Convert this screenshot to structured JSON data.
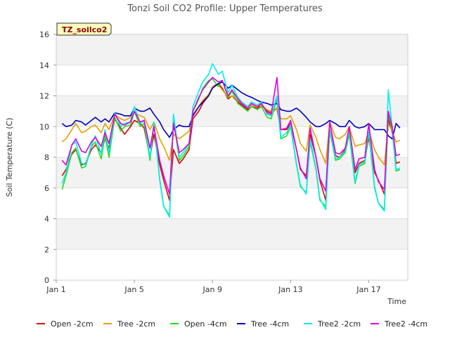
{
  "chart_data": {
    "type": "line",
    "title": "Tonzi Soil CO2 Profile: Upper Temperatures",
    "xlabel": "Time",
    "ylabel": "Soil Temperature (C)",
    "tag": "TZ_soilco2",
    "xlim": [
      1,
      19
    ],
    "ylim": [
      0,
      16
    ],
    "x_ticks": [
      {
        "value": 1,
        "label": "Jan 1"
      },
      {
        "value": 5,
        "label": "Jan 5"
      },
      {
        "value": 9,
        "label": "Jan 9"
      },
      {
        "value": 13,
        "label": "Jan 13"
      },
      {
        "value": 17,
        "label": "Jan 17"
      }
    ],
    "y_ticks": [
      0,
      2,
      4,
      6,
      8,
      10,
      12,
      14,
      16
    ],
    "series": [
      {
        "name": "Open -2cm",
        "color": "#dd0000",
        "x": [
          1.3,
          1.5,
          1.8,
          2.0,
          2.3,
          2.5,
          2.8,
          3.0,
          3.3,
          3.5,
          3.7,
          4.0,
          4.3,
          4.5,
          4.8,
          5.0,
          5.3,
          5.5,
          5.8,
          6.0,
          6.3,
          6.5,
          6.8,
          7.0,
          7.3,
          7.5,
          7.8,
          8.0,
          8.3,
          8.5,
          8.8,
          9.0,
          9.3,
          9.5,
          9.8,
          10.0,
          10.3,
          10.5,
          10.8,
          11.0,
          11.3,
          11.5,
          11.8,
          12.0,
          12.3,
          12.5,
          12.8,
          13.0,
          13.3,
          13.5,
          13.8,
          14.0,
          14.3,
          14.5,
          14.8,
          15.0,
          15.3,
          15.5,
          15.8,
          16.0,
          16.3,
          16.5,
          16.8,
          17.0,
          17.3,
          17.5,
          17.8,
          18.0,
          18.2,
          18.4,
          18.6
        ],
        "y": [
          6.8,
          7.2,
          8.2,
          8.5,
          7.5,
          7.6,
          8.5,
          8.8,
          8.3,
          9.2,
          8.6,
          10.5,
          9.9,
          9.5,
          10.0,
          10.4,
          10.2,
          9.9,
          8.0,
          9.5,
          7.5,
          6.5,
          5.2,
          8.5,
          7.6,
          7.9,
          8.5,
          10.5,
          11.0,
          11.5,
          12.0,
          12.6,
          12.8,
          12.5,
          11.8,
          12.0,
          11.6,
          11.4,
          11.1,
          11.3,
          11.2,
          11.4,
          11.0,
          10.9,
          11.2,
          9.8,
          9.8,
          10.2,
          8.5,
          7.2,
          6.8,
          9.5,
          8.0,
          6.5,
          5.2,
          9.8,
          8.1,
          8.0,
          8.5,
          9.5,
          7.0,
          7.6,
          7.8,
          9.3,
          7.0,
          6.5,
          5.6,
          10.5,
          9.6,
          7.6,
          7.7
        ]
      },
      {
        "name": "Tree -2cm",
        "color": "#e69f00",
        "x": [
          1.3,
          1.5,
          1.8,
          2.0,
          2.3,
          2.5,
          2.8,
          3.0,
          3.3,
          3.5,
          3.7,
          4.0,
          4.3,
          4.5,
          4.8,
          5.0,
          5.3,
          5.5,
          5.8,
          6.0,
          6.3,
          6.5,
          6.8,
          7.0,
          7.3,
          7.5,
          7.8,
          8.0,
          8.3,
          8.5,
          8.8,
          9.0,
          9.3,
          9.5,
          9.8,
          10.0,
          10.3,
          10.5,
          10.8,
          11.0,
          11.3,
          11.5,
          11.8,
          12.0,
          12.3,
          12.5,
          12.8,
          13.0,
          13.3,
          13.5,
          13.8,
          14.0,
          14.3,
          14.5,
          14.8,
          15.0,
          15.3,
          15.5,
          15.8,
          16.0,
          16.3,
          16.5,
          16.8,
          17.0,
          17.3,
          17.5,
          17.8,
          18.0,
          18.2,
          18.4,
          18.6
        ],
        "y": [
          9.0,
          9.2,
          9.8,
          10.2,
          9.6,
          9.7,
          10.0,
          10.1,
          9.6,
          10.2,
          9.8,
          10.8,
          10.5,
          10.4,
          10.6,
          10.9,
          10.7,
          10.6,
          9.8,
          10.3,
          9.2,
          8.7,
          7.8,
          9.5,
          9.2,
          9.4,
          9.7,
          10.8,
          11.3,
          11.7,
          12.1,
          12.6,
          12.7,
          12.4,
          11.9,
          12.0,
          11.7,
          11.5,
          11.3,
          11.4,
          11.3,
          11.4,
          11.1,
          11.0,
          11.2,
          10.5,
          10.5,
          10.7,
          9.8,
          8.9,
          8.4,
          10.1,
          9.3,
          8.5,
          7.6,
          10.3,
          9.3,
          9.2,
          9.5,
          10.0,
          8.7,
          8.8,
          8.9,
          9.7,
          8.5,
          8.0,
          7.5,
          10.2,
          9.7,
          9.0,
          9.1
        ]
      },
      {
        "name": "Open -4cm",
        "color": "#22dd22",
        "x": [
          1.3,
          1.5,
          1.8,
          2.0,
          2.3,
          2.5,
          2.8,
          3.0,
          3.3,
          3.5,
          3.7,
          4.0,
          4.3,
          4.5,
          4.8,
          5.0,
          5.3,
          5.5,
          5.8,
          6.0,
          6.3,
          6.5,
          6.8,
          7.0,
          7.3,
          7.5,
          7.8,
          8.0,
          8.3,
          8.5,
          8.8,
          9.0,
          9.3,
          9.5,
          9.8,
          10.0,
          10.3,
          10.5,
          10.8,
          11.0,
          11.3,
          11.5,
          11.8,
          12.0,
          12.3,
          12.5,
          12.8,
          13.0,
          13.3,
          13.5,
          13.8,
          14.0,
          14.3,
          14.5,
          14.8,
          15.0,
          15.3,
          15.5,
          15.8,
          16.0,
          16.3,
          16.5,
          16.8,
          17.0,
          17.3,
          17.5,
          17.8,
          18.0,
          18.2,
          18.4,
          18.6
        ],
        "y": [
          5.9,
          6.8,
          8.3,
          8.6,
          7.3,
          7.4,
          8.7,
          9.0,
          7.9,
          9.4,
          8.0,
          10.6,
          9.7,
          10.0,
          10.1,
          11.0,
          10.0,
          10.2,
          7.8,
          10.2,
          6.5,
          4.8,
          4.2,
          10.5,
          7.8,
          8.1,
          8.7,
          11.0,
          11.8,
          12.5,
          13.0,
          13.1,
          12.6,
          13.0,
          11.9,
          12.3,
          11.5,
          11.3,
          11.0,
          11.3,
          11.1,
          11.3,
          10.6,
          10.5,
          11.8,
          9.2,
          9.4,
          10.0,
          7.5,
          6.1,
          5.7,
          9.0,
          7.2,
          5.2,
          4.8,
          9.7,
          7.8,
          7.9,
          8.3,
          9.5,
          6.3,
          7.4,
          7.6,
          9.6,
          6.0,
          5.0,
          4.6,
          10.8,
          9.8,
          7.1,
          7.2
        ]
      },
      {
        "name": "Tree -4cm",
        "color": "#0000bb",
        "x": [
          1.3,
          1.5,
          1.8,
          2.0,
          2.3,
          2.5,
          2.8,
          3.0,
          3.3,
          3.5,
          3.7,
          4.0,
          4.3,
          4.5,
          4.8,
          5.0,
          5.3,
          5.5,
          5.8,
          6.0,
          6.3,
          6.5,
          6.8,
          7.0,
          7.3,
          7.5,
          7.8,
          8.0,
          8.3,
          8.5,
          8.8,
          9.0,
          9.3,
          9.5,
          9.8,
          10.0,
          10.3,
          10.5,
          10.8,
          11.0,
          11.3,
          11.5,
          11.8,
          12.0,
          12.3,
          12.5,
          12.8,
          13.0,
          13.3,
          13.5,
          13.8,
          14.0,
          14.3,
          14.5,
          14.8,
          15.0,
          15.3,
          15.5,
          15.8,
          16.0,
          16.3,
          16.5,
          16.8,
          17.0,
          17.3,
          17.5,
          17.8,
          18.0,
          18.2,
          18.4,
          18.6
        ],
        "y": [
          10.2,
          10.0,
          10.1,
          10.4,
          10.3,
          10.1,
          10.4,
          10.6,
          10.3,
          10.5,
          10.3,
          10.9,
          10.8,
          10.7,
          10.7,
          11.2,
          11.0,
          11.0,
          11.2,
          10.8,
          10.3,
          9.8,
          9.3,
          9.8,
          10.1,
          10.0,
          10.0,
          10.7,
          11.3,
          11.6,
          12.0,
          12.5,
          12.8,
          12.9,
          12.5,
          12.7,
          12.4,
          12.2,
          12.0,
          11.9,
          11.7,
          11.6,
          11.5,
          11.4,
          11.5,
          11.1,
          11.0,
          11.0,
          11.2,
          11.0,
          10.6,
          10.3,
          10.0,
          10.0,
          10.2,
          10.4,
          10.2,
          10.0,
          10.0,
          10.4,
          10.0,
          9.9,
          10.0,
          10.2,
          9.8,
          9.8,
          9.8,
          9.4,
          9.2,
          10.2,
          9.9
        ]
      },
      {
        "name": "Tree2 -2cm",
        "color": "#00eeee",
        "x": [
          1.3,
          1.5,
          1.8,
          2.0,
          2.3,
          2.5,
          2.8,
          3.0,
          3.3,
          3.5,
          3.7,
          4.0,
          4.3,
          4.5,
          4.8,
          5.0,
          5.3,
          5.5,
          5.8,
          6.0,
          6.3,
          6.5,
          6.8,
          7.0,
          7.3,
          7.5,
          7.8,
          8.0,
          8.3,
          8.5,
          8.8,
          9.0,
          9.3,
          9.5,
          9.8,
          10.0,
          10.3,
          10.5,
          10.8,
          11.0,
          11.3,
          11.5,
          11.8,
          12.0,
          12.3,
          12.5,
          12.8,
          13.0,
          13.3,
          13.5,
          13.8,
          14.0,
          14.3,
          14.5,
          14.8,
          15.0,
          15.3,
          15.5,
          15.8,
          16.0,
          16.3,
          16.5,
          16.8,
          17.0,
          17.3,
          17.5,
          17.8,
          18.0,
          18.2,
          18.4,
          18.6
        ],
        "y": [
          6.3,
          7.0,
          8.8,
          9.0,
          7.6,
          7.5,
          8.8,
          9.4,
          8.2,
          9.8,
          8.3,
          10.9,
          10.0,
          10.2,
          10.3,
          11.3,
          10.2,
          10.4,
          8.0,
          10.3,
          6.6,
          4.8,
          4.1,
          10.8,
          8.0,
          8.3,
          8.9,
          11.3,
          12.3,
          12.9,
          13.4,
          14.1,
          13.4,
          13.6,
          12.2,
          12.7,
          11.9,
          11.6,
          11.3,
          11.6,
          11.4,
          11.6,
          10.8,
          10.7,
          12.0,
          9.3,
          9.6,
          10.1,
          7.6,
          6.2,
          5.6,
          9.2,
          7.3,
          5.3,
          4.6,
          9.8,
          7.9,
          8.0,
          8.4,
          9.8,
          6.4,
          7.5,
          7.7,
          9.8,
          6.1,
          5.0,
          4.5,
          12.4,
          9.9,
          7.2,
          7.3
        ]
      },
      {
        "name": "Tree2 -4cm",
        "color": "#dd00dd",
        "x": [
          1.3,
          1.5,
          1.8,
          2.0,
          2.3,
          2.5,
          2.8,
          3.0,
          3.3,
          3.5,
          3.7,
          4.0,
          4.3,
          4.5,
          4.8,
          5.0,
          5.3,
          5.5,
          5.8,
          6.0,
          6.3,
          6.5,
          6.8,
          7.0,
          7.3,
          7.5,
          7.8,
          8.0,
          8.3,
          8.5,
          8.8,
          9.0,
          9.3,
          9.5,
          9.8,
          10.0,
          10.3,
          10.5,
          10.8,
          11.0,
          11.3,
          11.5,
          11.8,
          12.0,
          12.3,
          12.5,
          12.8,
          13.0,
          13.3,
          13.5,
          13.8,
          14.0,
          14.3,
          14.5,
          14.8,
          15.0,
          15.3,
          15.5,
          15.8,
          16.0,
          16.3,
          16.5,
          16.8,
          17.0,
          17.3,
          17.5,
          17.8,
          18.0,
          18.2,
          18.4,
          18.6
        ],
        "y": [
          7.8,
          7.5,
          8.8,
          9.2,
          8.4,
          8.3,
          9.0,
          9.3,
          8.7,
          9.6,
          8.9,
          10.8,
          10.2,
          10.1,
          10.3,
          11.0,
          10.3,
          10.4,
          8.6,
          10.0,
          7.8,
          6.8,
          5.6,
          10.2,
          8.3,
          8.5,
          8.9,
          11.0,
          11.9,
          12.4,
          12.9,
          13.2,
          12.9,
          13.0,
          12.0,
          12.4,
          11.8,
          11.5,
          11.2,
          11.5,
          11.3,
          11.5,
          10.9,
          10.8,
          13.2,
          9.8,
          9.9,
          10.4,
          8.5,
          7.3,
          6.6,
          9.9,
          8.0,
          6.6,
          5.8,
          10.3,
          8.3,
          8.2,
          8.6,
          10.0,
          7.2,
          7.9,
          8.0,
          10.2,
          7.2,
          6.4,
          5.9,
          11.0,
          10.0,
          8.1,
          8.2
        ]
      }
    ]
  }
}
